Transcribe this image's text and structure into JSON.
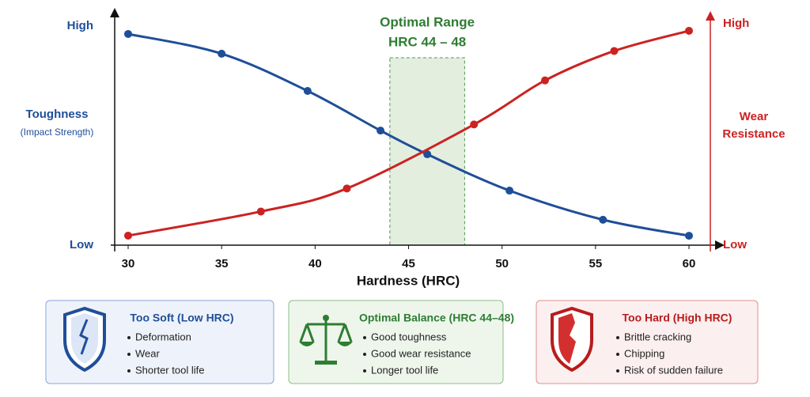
{
  "chart_data": {
    "type": "line",
    "xlabel": "Hardness (HRC)",
    "ylabel": "Toughness",
    "ysublabel": "(Impact Strength)",
    "y2label": [
      "Wear",
      "Resistance"
    ],
    "xlim": [
      30,
      60
    ],
    "xticks": [
      30,
      35,
      40,
      45,
      50,
      55,
      60
    ],
    "ylim": [
      0,
      100
    ],
    "yticks": [
      {
        "value": 0,
        "label": "Low"
      },
      {
        "value": 100,
        "label": "High"
      }
    ],
    "y2lim": [
      0,
      100
    ],
    "y2ticks": [
      {
        "value": 0,
        "label": "Low"
      },
      {
        "value": 100,
        "label": "High"
      }
    ],
    "highlight": {
      "label": "Optimal Range",
      "sublabel": "HRC 44 – 48",
      "x": [
        44,
        48
      ]
    },
    "series": [
      {
        "color": "#1f4e99",
        "x": [
          30,
          35,
          39.6,
          43.5,
          46,
          50.4,
          55.4,
          60
        ],
        "values": [
          96.4,
          87.4,
          70.4,
          52.3,
          41.5,
          24.9,
          11.6,
          4.3
        ]
      },
      {
        "color": "#cc2222",
        "axis": "y2",
        "x": [
          30,
          37.1,
          41.7,
          48.5,
          52.3,
          56,
          60
        ],
        "values": [
          4.3,
          15.2,
          25.6,
          54.5,
          74.4,
          87.7,
          96.8
        ]
      }
    ]
  },
  "panels": [
    {
      "title": "Too Soft (Low HRC)",
      "items": [
        "Deformation",
        "Wear",
        "Shorter tool life"
      ]
    },
    {
      "title": "Optimal Balance (HRC 44–48)",
      "items": [
        "Good toughness",
        "Good wear resistance",
        "Longer tool life"
      ]
    },
    {
      "title": "Too Hard (High HRC)",
      "items": [
        "Brittle cracking",
        "Chipping",
        "Risk of sudden failure"
      ]
    }
  ]
}
